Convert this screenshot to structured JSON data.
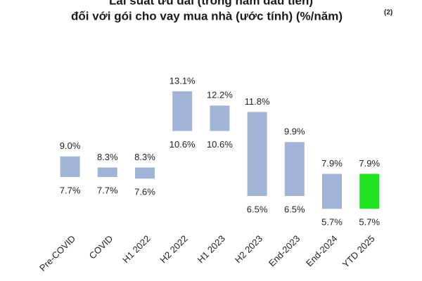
{
  "chart_data": {
    "type": "floating_bar",
    "title": "Lãi suất ưu đãi (trong năm đầu tiên)",
    "subtitle": "đối với gói cho vay mua nhà (ước tính) (%/năm)",
    "subtitle_note": "(2)",
    "categories": [
      "Pre-COVID",
      "COVID",
      "H1 2022",
      "H2 2022",
      "H1 2023",
      "H2 2023",
      "End-2023",
      "End-2024",
      "YTD 2025"
    ],
    "series": [
      {
        "values": [
          9.0,
          8.3,
          8.3,
          13.1,
          12.2,
          11.8,
          9.9,
          7.9,
          7.9
        ],
        "value_labels": [
          "9.0%",
          "8.3%",
          "8.3%",
          "13.1%",
          "12.2%",
          "11.8%",
          "9.9%",
          "7.9%",
          "7.9%"
        ]
      },
      {
        "values": [
          7.7,
          7.7,
          7.6,
          10.6,
          10.6,
          6.5,
          6.5,
          5.7,
          5.7
        ],
        "value_labels": [
          "7.7%",
          "7.7%",
          "7.6%",
          "10.6%",
          "10.6%",
          "6.5%",
          "6.5%",
          "5.7%",
          "5.7%"
        ]
      }
    ],
    "colors": [
      "#a2b3d8",
      "#a2b3d8",
      "#a2b3d8",
      "#a2b3d8",
      "#a2b3d8",
      "#a2b3d8",
      "#a2b3d8",
      "#a2b3d8",
      "#1ee51e"
    ]
  }
}
